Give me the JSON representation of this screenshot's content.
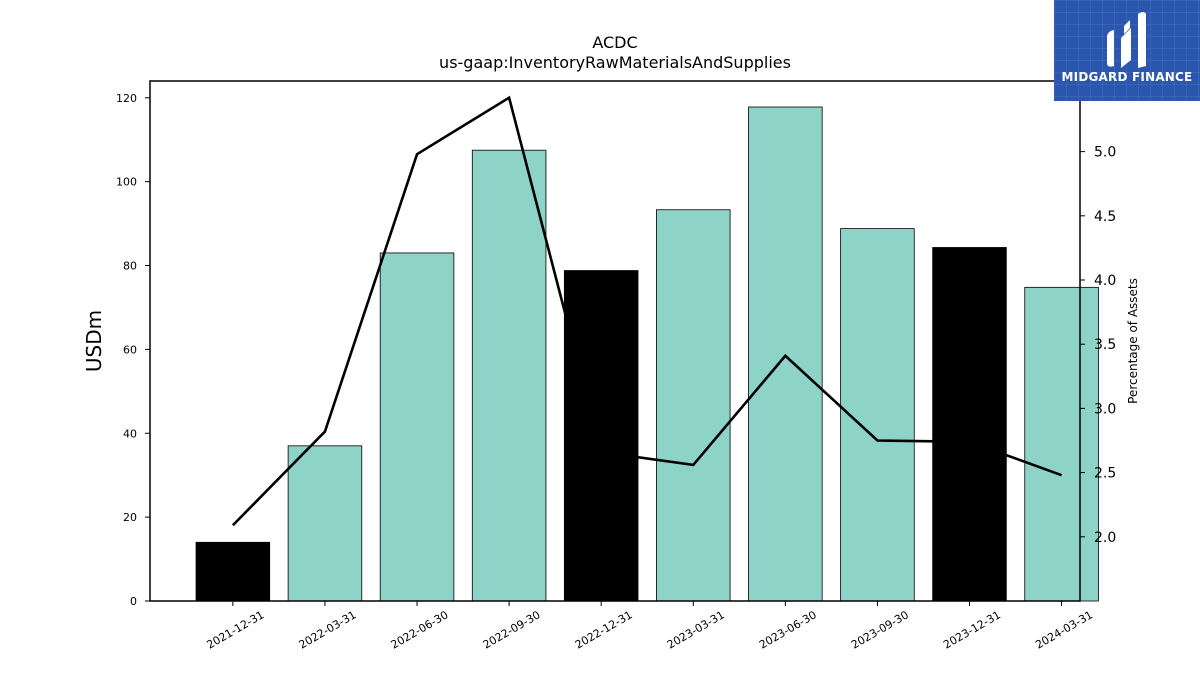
{
  "chart_data": {
    "type": "bar",
    "title": "ACDC",
    "subtitle": "us-gaap:InventoryRawMaterialsAndSupplies",
    "xlabel": "",
    "ylabel": "USDm",
    "y2label": "Percentage of Assets",
    "categories": [
      "2021-12-31",
      "2022-03-31",
      "2022-06-30",
      "2022-09-30",
      "2022-12-31",
      "2023-03-31",
      "2023-06-30",
      "2023-09-30",
      "2023-12-31",
      "2024-03-31"
    ],
    "series": [
      {
        "kind": "bar",
        "axis": "left",
        "values": [
          14.0,
          37.0,
          83.0,
          107.5,
          78.8,
          93.3,
          117.8,
          88.8,
          84.3,
          74.8
        ],
        "colors": [
          "#000000",
          "#8dd3c7",
          "#8dd3c7",
          "#8dd3c7",
          "#000000",
          "#8dd3c7",
          "#8dd3c7",
          "#8dd3c7",
          "#000000",
          "#8dd3c7"
        ]
      },
      {
        "kind": "line",
        "axis": "right",
        "color": "#000000",
        "values": [
          2.09,
          2.82,
          4.98,
          5.42,
          2.66,
          2.56,
          3.41,
          2.75,
          2.74,
          2.48
        ]
      }
    ],
    "ylim": [
      0,
      124
    ],
    "y2lim": [
      1.5,
      5.55
    ],
    "yticks": [
      0,
      20,
      40,
      60,
      80,
      100,
      120
    ],
    "y2ticks": [
      "2.0",
      "2.5",
      "3.0",
      "3.5",
      "4.0",
      "4.5",
      "5.0"
    ],
    "grid": false,
    "legend": "none"
  },
  "logo": {
    "text": "MIDGARD FINANCE",
    "background": "#2b56ae"
  }
}
